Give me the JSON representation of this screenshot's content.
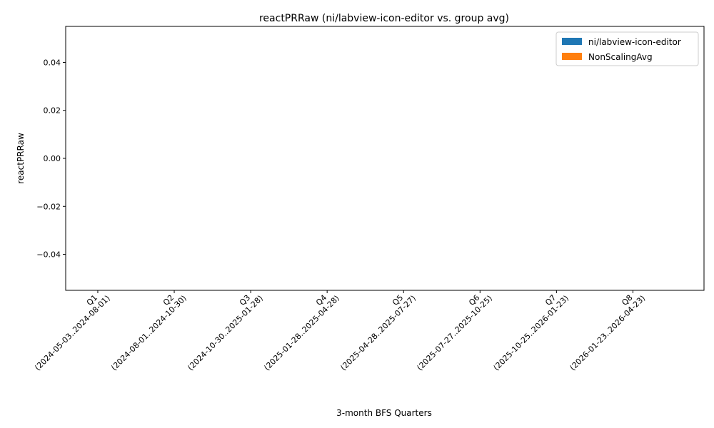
{
  "chart_data": {
    "type": "bar",
    "title": "reactPRRaw (ni/labview-icon-editor vs. group avg)",
    "xlabel": "3-month BFS Quarters",
    "ylabel": "reactPRRaw",
    "categories": [
      {
        "label": "Q1",
        "range": "(2024-05-03..2024-08-01)"
      },
      {
        "label": "Q2",
        "range": "(2024-08-01..2024-10-30)"
      },
      {
        "label": "Q3",
        "range": "(2024-10-30..2025-01-28)"
      },
      {
        "label": "Q4",
        "range": "(2025-01-28..2025-04-28)"
      },
      {
        "label": "Q5",
        "range": "(2025-04-28..2025-07-27)"
      },
      {
        "label": "Q6",
        "range": "(2025-07-27..2025-10-25)"
      },
      {
        "label": "Q7",
        "range": "(2025-10-25..2026-01-23)"
      },
      {
        "label": "Q8",
        "range": "(2026-01-23..2026-04-23)"
      }
    ],
    "series": [
      {
        "name": "ni/labview-icon-editor",
        "color": "#1f77b4",
        "values": [
          0,
          0,
          0,
          0,
          0,
          0,
          0,
          0
        ]
      },
      {
        "name": "NonScalingAvg",
        "color": "#ff7f0e",
        "values": [
          0,
          0,
          0,
          0,
          0,
          0,
          0,
          0
        ]
      }
    ],
    "ylim": [
      -0.055,
      0.055
    ],
    "yticks": [
      -0.04,
      -0.02,
      0.0,
      0.02,
      0.04
    ],
    "ytick_labels": [
      "−0.04",
      "−0.02",
      "0.00",
      "0.02",
      "0.04"
    ],
    "grid": false,
    "legend_position": "top-right"
  }
}
